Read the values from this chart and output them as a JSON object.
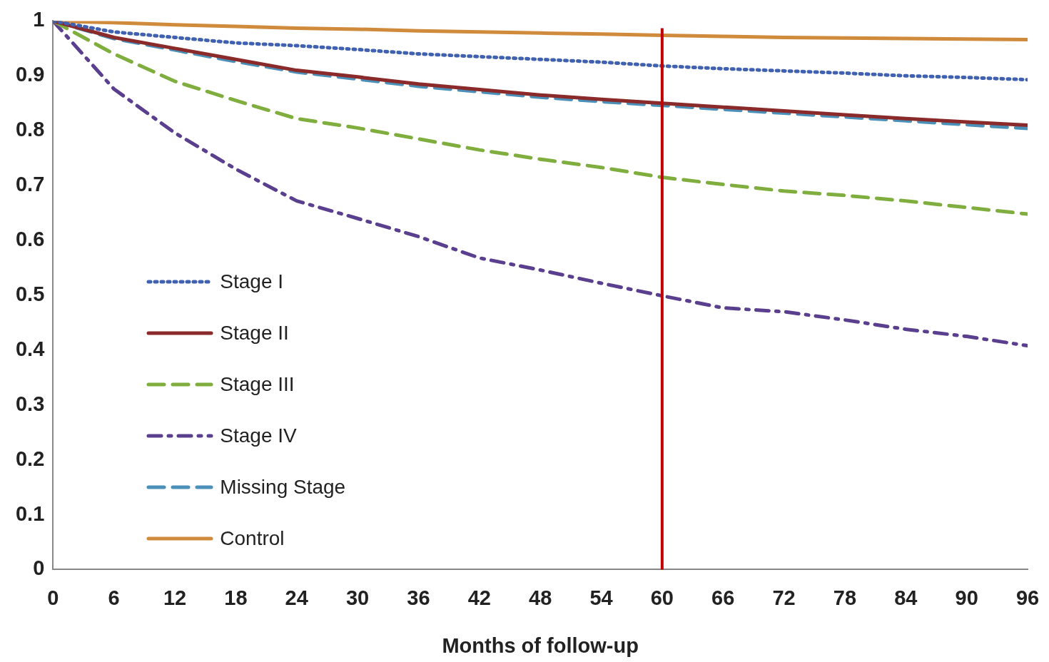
{
  "chart_data": {
    "type": "line",
    "xlabel": "Months of follow-up",
    "x": [
      0,
      6,
      12,
      18,
      24,
      30,
      36,
      42,
      48,
      54,
      60,
      66,
      72,
      78,
      84,
      90,
      96
    ],
    "xlim": [
      0,
      96
    ],
    "xticks": [
      0,
      6,
      12,
      18,
      24,
      30,
      36,
      42,
      48,
      54,
      60,
      66,
      72,
      78,
      84,
      90,
      96
    ],
    "ylim": [
      0,
      1
    ],
    "yticks": [
      0,
      0.1,
      0.2,
      0.3,
      0.4,
      0.5,
      0.6,
      0.7,
      0.8,
      0.9,
      1
    ],
    "grid": false,
    "legend": "left",
    "marker": "none",
    "series": [
      {
        "name": "Stage I",
        "color": "#4060b0",
        "line_style": "dotted",
        "values": [
          1,
          0.98,
          0.97,
          0.96,
          0.955,
          0.948,
          0.94,
          0.935,
          0.93,
          0.925,
          0.918,
          0.913,
          0.909,
          0.905,
          0.9,
          0.897,
          0.893
        ]
      },
      {
        "name": "Stage II",
        "color": "#8b2a2a",
        "line_style": "solid",
        "values": [
          1,
          0.97,
          0.95,
          0.93,
          0.91,
          0.898,
          0.885,
          0.875,
          0.865,
          0.857,
          0.85,
          0.843,
          0.836,
          0.829,
          0.822,
          0.816,
          0.81
        ]
      },
      {
        "name": "Stage III",
        "color": "#7fae3e",
        "line_style": "dashed",
        "values": [
          1,
          0.94,
          0.89,
          0.855,
          0.822,
          0.805,
          0.785,
          0.765,
          0.748,
          0.733,
          0.715,
          0.702,
          0.69,
          0.682,
          0.672,
          0.66,
          0.648
        ]
      },
      {
        "name": "Stage IV",
        "color": "#5a3f8f",
        "line_style": "dashdot",
        "values": [
          1,
          0.876,
          0.796,
          0.73,
          0.672,
          0.64,
          0.607,
          0.568,
          0.546,
          0.522,
          0.499,
          0.477,
          0.47,
          0.455,
          0.438,
          0.425,
          0.408
        ]
      },
      {
        "name": "Missing Stage",
        "color": "#4a90b8",
        "line_style": "dashed",
        "values": [
          1,
          0.968,
          0.947,
          0.926,
          0.907,
          0.894,
          0.881,
          0.871,
          0.861,
          0.853,
          0.846,
          0.839,
          0.832,
          0.825,
          0.818,
          0.811,
          0.804
        ]
      },
      {
        "name": "Control",
        "color": "#d08a3c",
        "line_style": "solid",
        "values": [
          1,
          0.997,
          0.993,
          0.99,
          0.987,
          0.985,
          0.982,
          0.98,
          0.978,
          0.976,
          0.974,
          0.972,
          0.97,
          0.969,
          0.968,
          0.967,
          0.966
        ]
      }
    ],
    "ref_lines": [
      {
        "axis": "x",
        "value": 60,
        "color": "#c00000"
      }
    ]
  }
}
